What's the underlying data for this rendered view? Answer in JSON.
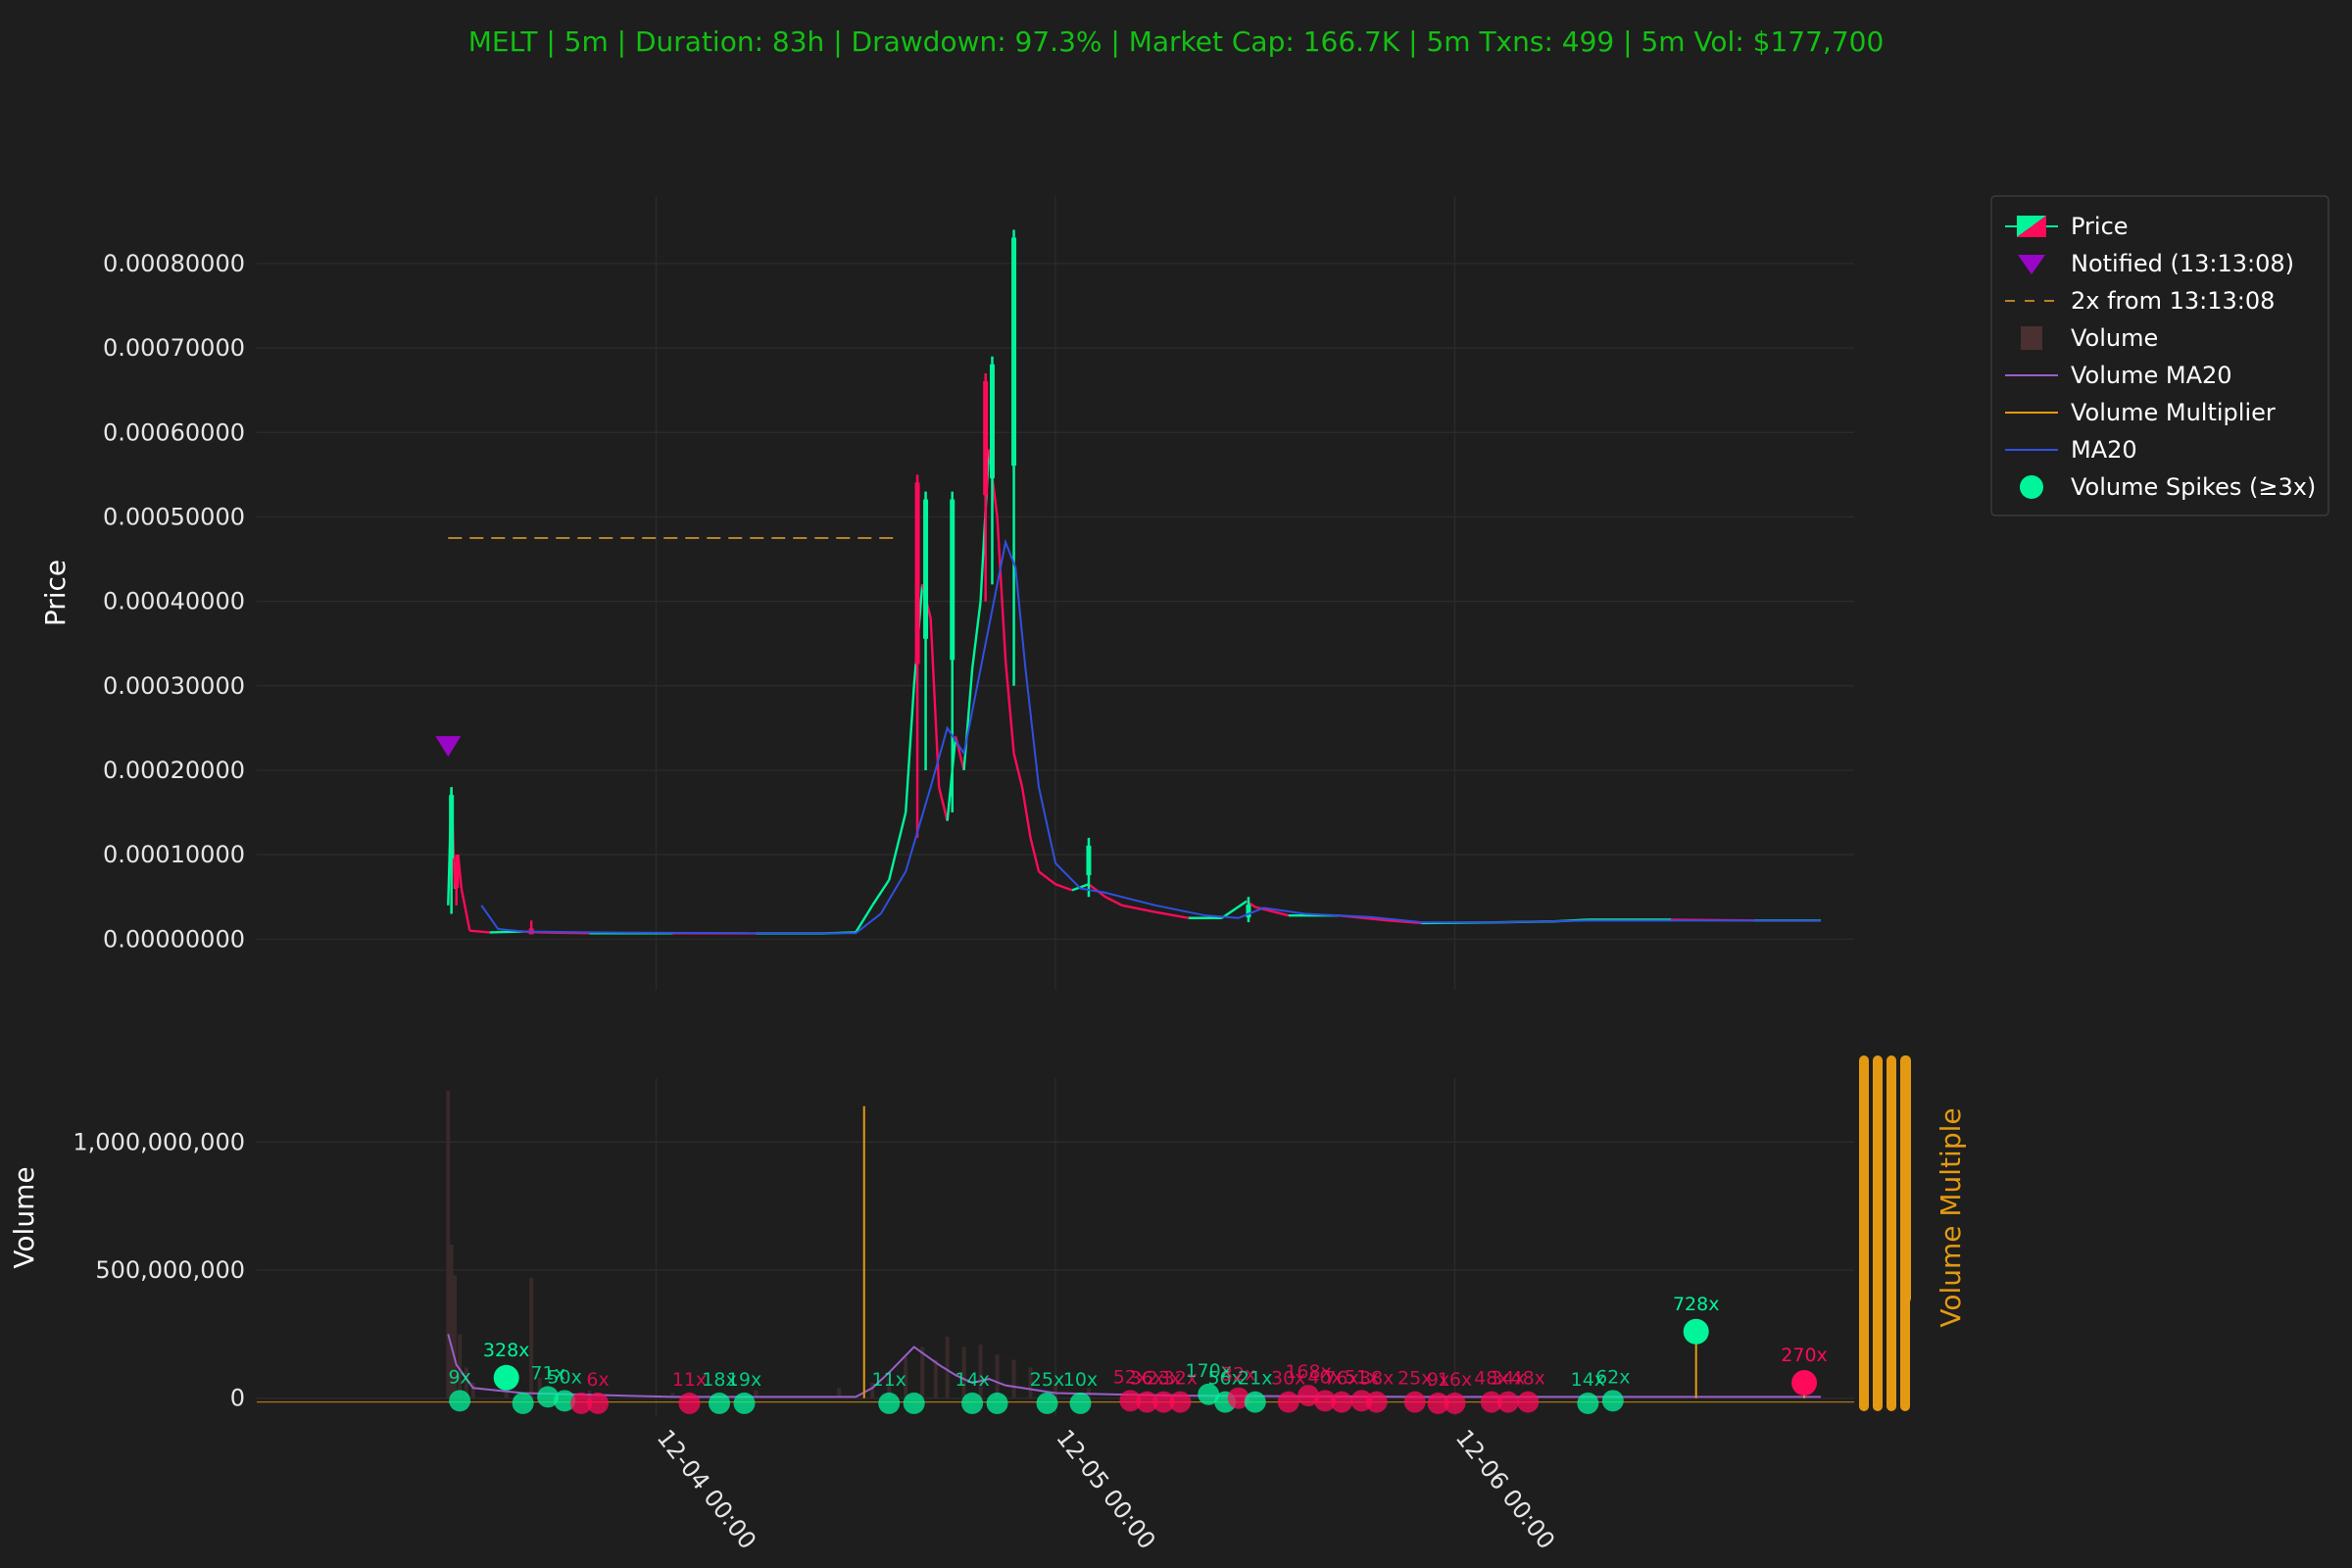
{
  "colors": {
    "background": "#1e1e1e",
    "grid": "#2c2c2c",
    "up": "#00f59a",
    "down": "#ff0a5a",
    "title": "#13c013",
    "ma20": "#3050e0",
    "volume_ma20": "#9a5fc8",
    "volume_multiplier": "#e39a12",
    "notified": "#9a06c8",
    "twox_line": "#b5812a",
    "volume_bar": "#3b2b2b",
    "right_axis": "#e39a12"
  },
  "chart_data": {
    "type": "candlestick",
    "title": "MELT | 5m | Duration: 83h | Drawdown: 97.3% | Market Cap: 166.7K | 5m Txns: 499 | 5m Vol: $177,700",
    "x_start": "12-03 00:00",
    "x_end": "12-06 23:30",
    "x_ticks": [
      {
        "t": 24,
        "label": "12-04 00:00"
      },
      {
        "t": 48,
        "label": "12-05 00:00"
      },
      {
        "t": 72,
        "label": "12-06 00:00"
      }
    ],
    "price_panel": {
      "ylabel": "Price",
      "ylim": [
        -6e-05,
        0.00088
      ],
      "yticks": [
        0.0,
        0.0001,
        0.0002,
        0.0003,
        0.0004,
        0.0005,
        0.0006,
        0.0007,
        0.0008
      ],
      "ytick_labels": [
        "0.00000000",
        "0.00010000",
        "0.00020000",
        "0.00030000",
        "0.00040000",
        "0.00050000",
        "0.00060000",
        "0.00070000",
        "0.00080000"
      ],
      "price_path": [
        [
          11.5,
          4e-05
        ],
        [
          11.7,
          0.00018
        ],
        [
          11.9,
          6e-05
        ],
        [
          12.1,
          0.0001
        ],
        [
          12.3,
          6e-05
        ],
        [
          12.5,
          4e-05
        ],
        [
          12.8,
          1e-05
        ],
        [
          14,
          8e-06
        ],
        [
          16,
          9e-06
        ],
        [
          17,
          8e-06
        ],
        [
          20,
          7e-06
        ],
        [
          25,
          7e-06
        ],
        [
          30,
          6.8e-06
        ],
        [
          34,
          6.8e-06
        ],
        [
          36,
          8e-06
        ],
        [
          37,
          4e-05
        ],
        [
          38,
          7e-05
        ],
        [
          39,
          0.00015
        ],
        [
          39.5,
          0.0003
        ],
        [
          40,
          0.00042
        ],
        [
          40.5,
          0.00038
        ],
        [
          41,
          0.00018
        ],
        [
          41.5,
          0.00014
        ],
        [
          42,
          0.00024
        ],
        [
          42.5,
          0.0002
        ],
        [
          43,
          0.00032
        ],
        [
          43.5,
          0.0004
        ],
        [
          44,
          0.00058
        ],
        [
          44.5,
          0.0005
        ],
        [
          45,
          0.00033
        ],
        [
          45.5,
          0.00022
        ],
        [
          46,
          0.00018
        ],
        [
          46.5,
          0.00012
        ],
        [
          47,
          8e-05
        ],
        [
          48,
          6.5e-05
        ],
        [
          49,
          5.8e-05
        ],
        [
          50,
          6.5e-05
        ],
        [
          51,
          5e-05
        ],
        [
          52,
          4e-05
        ],
        [
          54,
          3.2e-05
        ],
        [
          56,
          2.5e-05
        ],
        [
          58,
          2.5e-05
        ],
        [
          59.5,
          4.5e-05
        ],
        [
          60,
          3.8e-05
        ],
        [
          62,
          2.8e-05
        ],
        [
          65,
          2.8e-05
        ],
        [
          68,
          2.2e-05
        ],
        [
          70,
          1.9e-05
        ],
        [
          75,
          2e-05
        ],
        [
          78,
          2.1e-05
        ],
        [
          80,
          2.3e-05
        ],
        [
          85,
          2.3e-05
        ],
        [
          90,
          2.2e-05
        ],
        [
          94,
          2.2e-05
        ]
      ],
      "spikes": [
        {
          "t": 11.7,
          "high": 0.00018,
          "low": 3e-05,
          "dir": "up"
        },
        {
          "t": 12.0,
          "high": 0.0001,
          "low": 4e-05,
          "dir": "down"
        },
        {
          "t": 16.5,
          "high": 2.2e-05,
          "low": 8e-06,
          "dir": "down"
        },
        {
          "t": 39.7,
          "high": 0.00055,
          "low": 0.00012,
          "dir": "down"
        },
        {
          "t": 40.2,
          "high": 0.00053,
          "low": 0.0002,
          "dir": "up"
        },
        {
          "t": 41.8,
          "high": 0.00053,
          "low": 0.00015,
          "dir": "up"
        },
        {
          "t": 43.8,
          "high": 0.00067,
          "low": 0.0004,
          "dir": "down"
        },
        {
          "t": 44.2,
          "high": 0.00069,
          "low": 0.00042,
          "dir": "up"
        },
        {
          "t": 45.5,
          "high": 0.00084,
          "low": 0.0003,
          "dir": "up"
        },
        {
          "t": 50.0,
          "high": 0.00012,
          "low": 5e-05,
          "dir": "up"
        },
        {
          "t": 59.6,
          "high": 5e-05,
          "low": 2e-05,
          "dir": "up"
        }
      ],
      "ma20": [
        [
          13.5,
          4e-05
        ],
        [
          14.5,
          1.2e-05
        ],
        [
          16,
          9e-06
        ],
        [
          20,
          8e-06
        ],
        [
          30,
          7e-06
        ],
        [
          36,
          7e-06
        ],
        [
          37.5,
          3e-05
        ],
        [
          39,
          8e-05
        ],
        [
          40.5,
          0.00018
        ],
        [
          41.5,
          0.00025
        ],
        [
          42.5,
          0.00022
        ],
        [
          43.5,
          0.00032
        ],
        [
          44.5,
          0.00042
        ],
        [
          45,
          0.00047
        ],
        [
          45.6,
          0.00044
        ],
        [
          46.2,
          0.00032
        ],
        [
          47,
          0.00018
        ],
        [
          48,
          9e-05
        ],
        [
          49.5,
          6e-05
        ],
        [
          51,
          5.5e-05
        ],
        [
          54,
          4e-05
        ],
        [
          57,
          2.8e-05
        ],
        [
          59,
          2.5e-05
        ],
        [
          60.5,
          3.7e-05
        ],
        [
          63,
          3e-05
        ],
        [
          67,
          2.6e-05
        ],
        [
          70,
          2e-05
        ],
        [
          75,
          2e-05
        ],
        [
          80,
          2.2e-05
        ],
        [
          94,
          2.2e-05
        ]
      ],
      "notified": {
        "t": 11.5,
        "price": 0.00023
      },
      "twox_line": {
        "price": 0.000475,
        "t_start": 11.5,
        "t_end": 38.5
      }
    },
    "volume_panel": {
      "ylabel": "Volume",
      "right_label": "Volume Multiple",
      "ylim": [
        -70000000,
        1250000000
      ],
      "yticks": [
        0,
        500000000,
        1000000000
      ],
      "ytick_labels": [
        "0",
        "500,000,000",
        "1,000,000,000"
      ],
      "bars": [
        [
          11.5,
          1200000000
        ],
        [
          11.7,
          600000000
        ],
        [
          11.9,
          480000000
        ],
        [
          12.2,
          250000000
        ],
        [
          12.6,
          120000000
        ],
        [
          13,
          60000000
        ],
        [
          15,
          40000000
        ],
        [
          16.5,
          470000000
        ],
        [
          17,
          80000000
        ],
        [
          20,
          30000000
        ],
        [
          25,
          20000000
        ],
        [
          30,
          30000000
        ],
        [
          35,
          40000000
        ],
        [
          37,
          60000000
        ],
        [
          38,
          80000000
        ],
        [
          39,
          160000000
        ],
        [
          40,
          200000000
        ],
        [
          40.8,
          150000000
        ],
        [
          41.5,
          240000000
        ],
        [
          42.5,
          200000000
        ],
        [
          43.5,
          210000000
        ],
        [
          44.5,
          170000000
        ],
        [
          45.5,
          150000000
        ],
        [
          46.5,
          120000000
        ],
        [
          48,
          60000000
        ],
        [
          50,
          40000000
        ],
        [
          55,
          20000000
        ],
        [
          60,
          25000000
        ],
        [
          70,
          15000000
        ],
        [
          80,
          10000000
        ],
        [
          90,
          8000000
        ]
      ],
      "volume_ma20": [
        [
          11.5,
          250000000
        ],
        [
          12,
          130000000
        ],
        [
          13,
          40000000
        ],
        [
          16,
          20000000
        ],
        [
          25,
          5000000
        ],
        [
          36,
          5000000
        ],
        [
          37,
          40000000
        ],
        [
          38,
          100000000
        ],
        [
          39.5,
          200000000
        ],
        [
          41,
          130000000
        ],
        [
          42,
          90000000
        ],
        [
          43,
          60000000
        ],
        [
          44,
          75000000
        ],
        [
          45,
          50000000
        ],
        [
          46,
          40000000
        ],
        [
          48,
          20000000
        ],
        [
          55,
          10000000
        ],
        [
          70,
          5000000
        ],
        [
          94,
          5000000
        ]
      ],
      "multiplier_spikes": [
        {
          "t": 36.5,
          "value": 1140000000
        },
        {
          "t": 86.5,
          "value": 260000000
        },
        {
          "t": 93,
          "value": 60000000
        }
      ],
      "spike_points": [
        {
          "t": 12.2,
          "label": "9x",
          "dir": "up",
          "level": -10000000
        },
        {
          "t": 15,
          "label": "328x",
          "dir": "up",
          "level": 80000000
        },
        {
          "t": 16,
          "label": "",
          "dir": "up",
          "level": -20000000
        },
        {
          "t": 17.5,
          "label": "71x",
          "dir": "up",
          "level": 5000000
        },
        {
          "t": 18.5,
          "label": "50x",
          "dir": "up",
          "level": -10000000
        },
        {
          "t": 19.5,
          "label": "",
          "dir": "down",
          "level": -20000000
        },
        {
          "t": 20.5,
          "label": "6x",
          "dir": "down",
          "level": -20000000
        },
        {
          "t": 26,
          "label": "11x",
          "dir": "down",
          "level": -20000000
        },
        {
          "t": 27.8,
          "label": "18x",
          "dir": "up",
          "level": -20000000
        },
        {
          "t": 29.3,
          "label": "19x",
          "dir": "up",
          "level": -20000000
        },
        {
          "t": 38,
          "label": "11x",
          "dir": "up",
          "level": -20000000
        },
        {
          "t": 39.5,
          "label": "",
          "dir": "up",
          "level": -20000000
        },
        {
          "t": 43,
          "label": "14x",
          "dir": "up",
          "level": -20000000
        },
        {
          "t": 44.5,
          "label": "",
          "dir": "up",
          "level": -20000000
        },
        {
          "t": 47.5,
          "label": "25x",
          "dir": "up",
          "level": -20000000
        },
        {
          "t": 49.5,
          "label": "10x",
          "dir": "up",
          "level": -20000000
        },
        {
          "t": 52.5,
          "label": "52x",
          "dir": "down",
          "level": -10000000
        },
        {
          "t": 53.5,
          "label": "36x",
          "dir": "down",
          "level": -15000000
        },
        {
          "t": 54.5,
          "label": "23x",
          "dir": "down",
          "level": -15000000
        },
        {
          "t": 55.5,
          "label": "32x",
          "dir": "down",
          "level": -15000000
        },
        {
          "t": 57.2,
          "label": "170x",
          "dir": "up",
          "level": 15000000
        },
        {
          "t": 58.2,
          "label": "56x",
          "dir": "up",
          "level": -15000000
        },
        {
          "t": 59,
          "label": "32x",
          "dir": "down",
          "level": 0
        },
        {
          "t": 60,
          "label": "21x",
          "dir": "up",
          "level": -15000000
        },
        {
          "t": 62,
          "label": "30x",
          "dir": "down",
          "level": -15000000
        },
        {
          "t": 63.2,
          "label": "168x",
          "dir": "down",
          "level": 10000000
        },
        {
          "t": 64.2,
          "label": "40x",
          "dir": "down",
          "level": -10000000
        },
        {
          "t": 65.2,
          "label": "76x",
          "dir": "down",
          "level": -15000000
        },
        {
          "t": 66.4,
          "label": "51x",
          "dir": "down",
          "level": -10000000
        },
        {
          "t": 67.3,
          "label": "38x",
          "dir": "down",
          "level": -15000000
        },
        {
          "t": 69.6,
          "label": "25x",
          "dir": "down",
          "level": -15000000
        },
        {
          "t": 71,
          "label": "9x",
          "dir": "down",
          "level": -20000000
        },
        {
          "t": 72,
          "label": "16x",
          "dir": "down",
          "level": -20000000
        },
        {
          "t": 74.2,
          "label": "48x",
          "dir": "down",
          "level": -15000000
        },
        {
          "t": 75.2,
          "label": "34x",
          "dir": "down",
          "level": -15000000
        },
        {
          "t": 76.4,
          "label": "48x",
          "dir": "down",
          "level": -15000000
        },
        {
          "t": 80,
          "label": "14x",
          "dir": "up",
          "level": -20000000
        },
        {
          "t": 81.5,
          "label": "62x",
          "dir": "up",
          "level": -10000000
        },
        {
          "t": 86.5,
          "label": "728x",
          "dir": "up",
          "level": 260000000
        },
        {
          "t": 93,
          "label": "270x",
          "dir": "down",
          "level": 60000000
        }
      ]
    },
    "legend": [
      {
        "key": "price",
        "label": "Price"
      },
      {
        "key": "notified",
        "label": "Notified (13:13:08)"
      },
      {
        "key": "twox",
        "label": "2x from 13:13:08"
      },
      {
        "key": "volume",
        "label": "Volume"
      },
      {
        "key": "volume_ma20",
        "label": "Volume MA20"
      },
      {
        "key": "volume_multiplier",
        "label": "Volume Multiplier"
      },
      {
        "key": "ma20",
        "label": "MA20"
      },
      {
        "key": "spikes",
        "label": "Volume Spikes (≥3x)"
      }
    ],
    "legend_position": "top-right, outside plot"
  }
}
